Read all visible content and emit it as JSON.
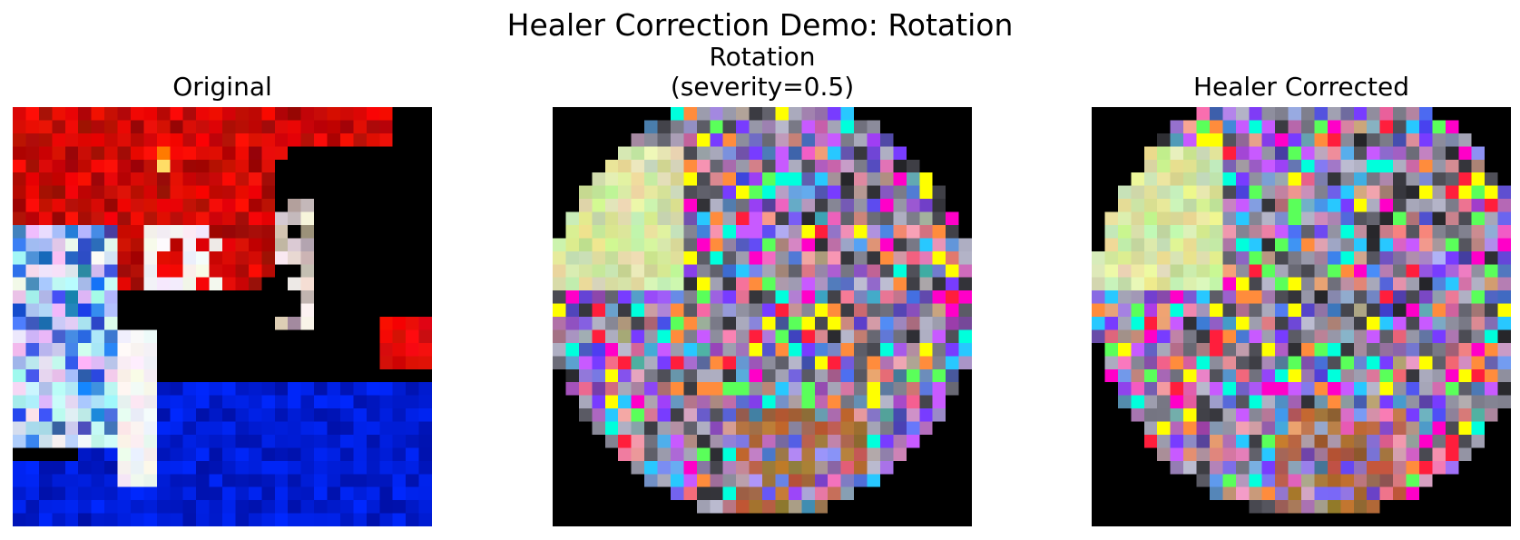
{
  "figure": {
    "title": "Healer Correction Demo: Rotation"
  },
  "panels": [
    {
      "title": "Original",
      "content": "original-image"
    },
    {
      "title_line1": "Rotation",
      "title_line2": "(severity=0.5)",
      "content": "rotated-image"
    },
    {
      "title": "Healer Corrected",
      "content": "corrected-image"
    }
  ]
}
